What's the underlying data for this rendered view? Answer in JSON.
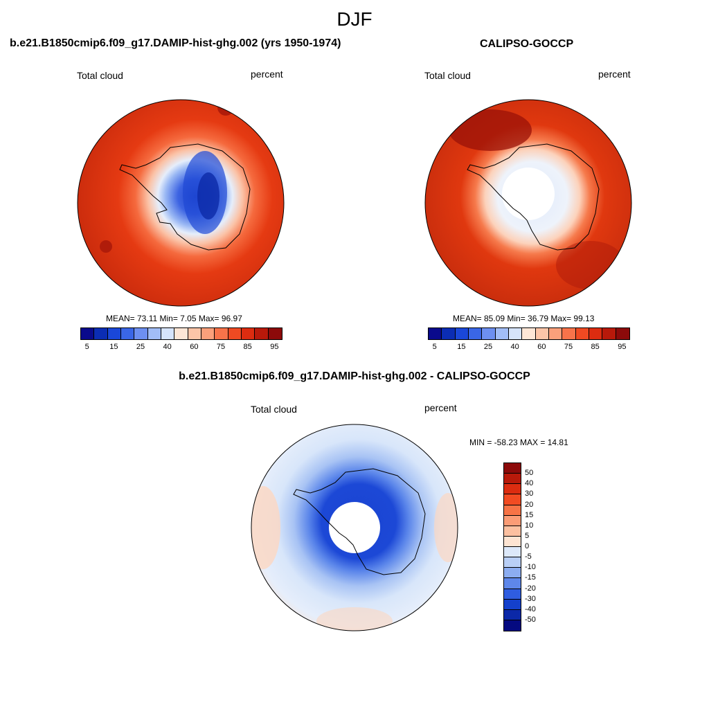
{
  "figure": {
    "title": "DJF"
  },
  "panel_model": {
    "title": "b.e21.B1850cmip6.f09_g17.DAMIP-hist-ghg.002 (yrs 1950-1974)",
    "left_label": "Total cloud",
    "right_label": "percent",
    "stats": "MEAN=  73.11  Min=   7.05  Max=  96.97"
  },
  "panel_obs": {
    "title": "CALIPSO-GOCCP",
    "left_label": "Total cloud",
    "right_label": "percent",
    "stats": "MEAN=  85.09  Min=  36.79  Max=  99.13"
  },
  "panel_diff": {
    "title": "b.e21.B1850cmip6.f09_g17.DAMIP-hist-ghg.002 - CALIPSO-GOCCP",
    "left_label": "Total cloud",
    "right_label": "percent",
    "stats": "MIN = -58.23 MAX =  14.81"
  },
  "colorbar_abs": {
    "colors": [
      "#0a0a8c",
      "#0b2db4",
      "#1a47d8",
      "#3a66e6",
      "#6d8ff0",
      "#a2bdf6",
      "#d6e4fb",
      "#fde6d6",
      "#fcc5a8",
      "#fba07b",
      "#f7734a",
      "#ef4a22",
      "#dc2c10",
      "#b8190a",
      "#8c0a0a"
    ],
    "labels": [
      "5",
      "15",
      "25",
      "40",
      "60",
      "75",
      "85",
      "95"
    ]
  },
  "colorbar_diff": {
    "colors": [
      "#8c0a0a",
      "#b8190a",
      "#dc2c10",
      "#f24b22",
      "#f77346",
      "#fb9c76",
      "#fcc0a0",
      "#fde4d2",
      "#dde9fa",
      "#b9cff6",
      "#8cadf1",
      "#5e87ea",
      "#2f5de0",
      "#1440cc",
      "#0b28a8",
      "#050a80"
    ],
    "labels": [
      "50",
      "40",
      "30",
      "20",
      "15",
      "10",
      "5",
      "0",
      "-5",
      "-10",
      "-15",
      "-20",
      "-30",
      "-40",
      "-50"
    ]
  }
}
